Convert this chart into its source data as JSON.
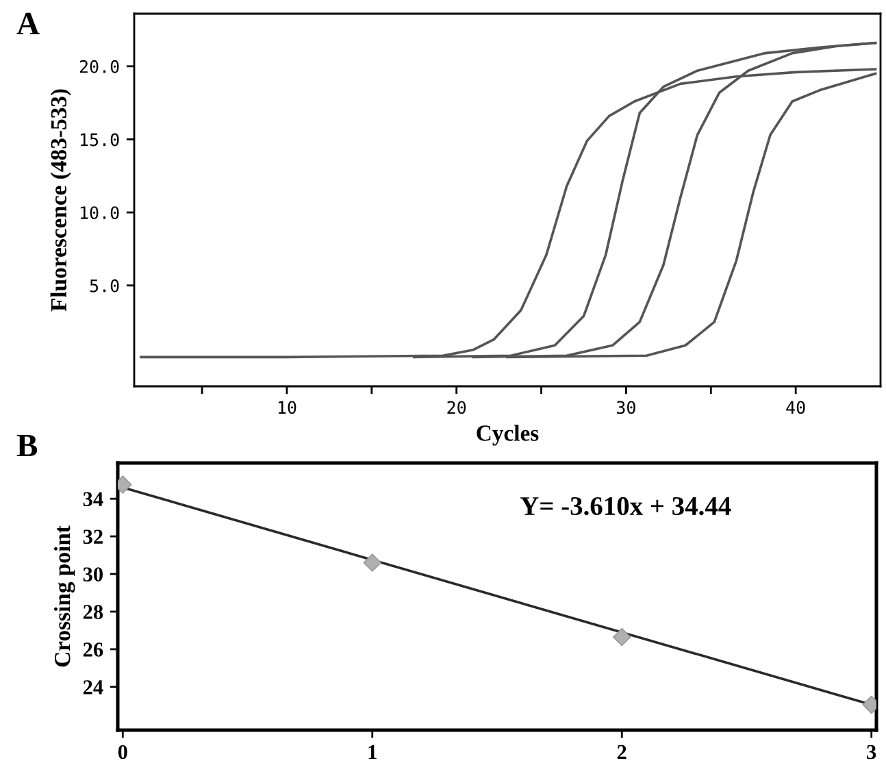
{
  "chart_data": [
    {
      "type": "line",
      "annotations": [
        "A"
      ],
      "xlabel": "Cycles",
      "ylabel": "Fluorescence (483-533)",
      "xlim": [
        1,
        45
      ],
      "ylim": [
        -1.9,
        23.6
      ],
      "xticks": [
        {
          "value": 5,
          "label": null
        },
        10,
        {
          "value": 15,
          "label": null
        },
        20,
        {
          "value": 25,
          "label": null
        },
        30,
        {
          "value": 35,
          "label": null
        },
        40
      ],
      "yticks": [
        {
          "value": 5,
          "label": "5.0"
        },
        {
          "value": 10,
          "label": "10.0"
        },
        {
          "value": 15,
          "label": "15.0"
        },
        {
          "value": 20,
          "label": "20.0"
        }
      ],
      "grid": false,
      "legend": false,
      "marker": "none",
      "line_style": "solid",
      "series": [
        {
          "color": "#555555",
          "x": [
            1.4,
            10,
            19.2,
            21,
            22.2,
            23.8,
            25.3,
            26.5,
            27.7,
            29,
            30.5,
            33.2,
            36.5,
            40,
            44.7
          ],
          "values": [
            0.1,
            0.1,
            0.2,
            0.6,
            1.3,
            3.3,
            7.1,
            11.8,
            14.9,
            16.6,
            17.6,
            18.8,
            19.3,
            19.6,
            19.8
          ]
        },
        {
          "color": "#555555",
          "x": [
            17.5,
            23.2,
            25.8,
            27.5,
            28.8,
            29.8,
            30.8,
            32.2,
            34.2,
            38.2,
            41.5,
            44.7
          ],
          "values": [
            0.1,
            0.2,
            0.9,
            2.9,
            7.1,
            12.2,
            16.8,
            18.6,
            19.7,
            20.9,
            21.3,
            21.6
          ]
        },
        {
          "color": "#555555",
          "x": [
            21,
            26.5,
            29.2,
            30.8,
            32.2,
            33.2,
            34.2,
            35.5,
            37.2,
            39.8,
            42.5,
            44.7
          ],
          "values": [
            0.1,
            0.2,
            0.9,
            2.5,
            6.4,
            11,
            15.3,
            18.2,
            19.7,
            20.9,
            21.4,
            21.6
          ]
        },
        {
          "color": "#555555",
          "x": [
            23,
            31.2,
            33.5,
            35.2,
            36.5,
            37.5,
            38.5,
            39.8,
            41.5,
            44.7
          ],
          "values": [
            0.1,
            0.2,
            0.9,
            2.5,
            6.7,
            11.4,
            15.3,
            17.6,
            18.4,
            19.5
          ]
        }
      ]
    },
    {
      "type": "scatter",
      "annotations": [
        "B",
        "Y= -3.610x + 34.44"
      ],
      "ylabel": "Crossing point",
      "xlim": [
        -0.02,
        3.02
      ],
      "ylim": [
        21.7,
        35.9
      ],
      "xticks": [
        0,
        1,
        2,
        3
      ],
      "yticks": [
        24,
        26,
        28,
        30,
        32,
        34
      ],
      "grid": false,
      "legend": false,
      "marker": "diamond",
      "series": [
        {
          "type": "line",
          "color": "#2a2a2a",
          "x": [
            0,
            3
          ],
          "values": [
            34.6,
            23.05
          ],
          "marker": "none",
          "line_style": "solid"
        },
        {
          "type": "scatter",
          "color": "#b0b0b0",
          "x": [
            0,
            1,
            2,
            3
          ],
          "values": [
            34.75,
            30.6,
            26.65,
            23.05
          ]
        }
      ]
    }
  ]
}
